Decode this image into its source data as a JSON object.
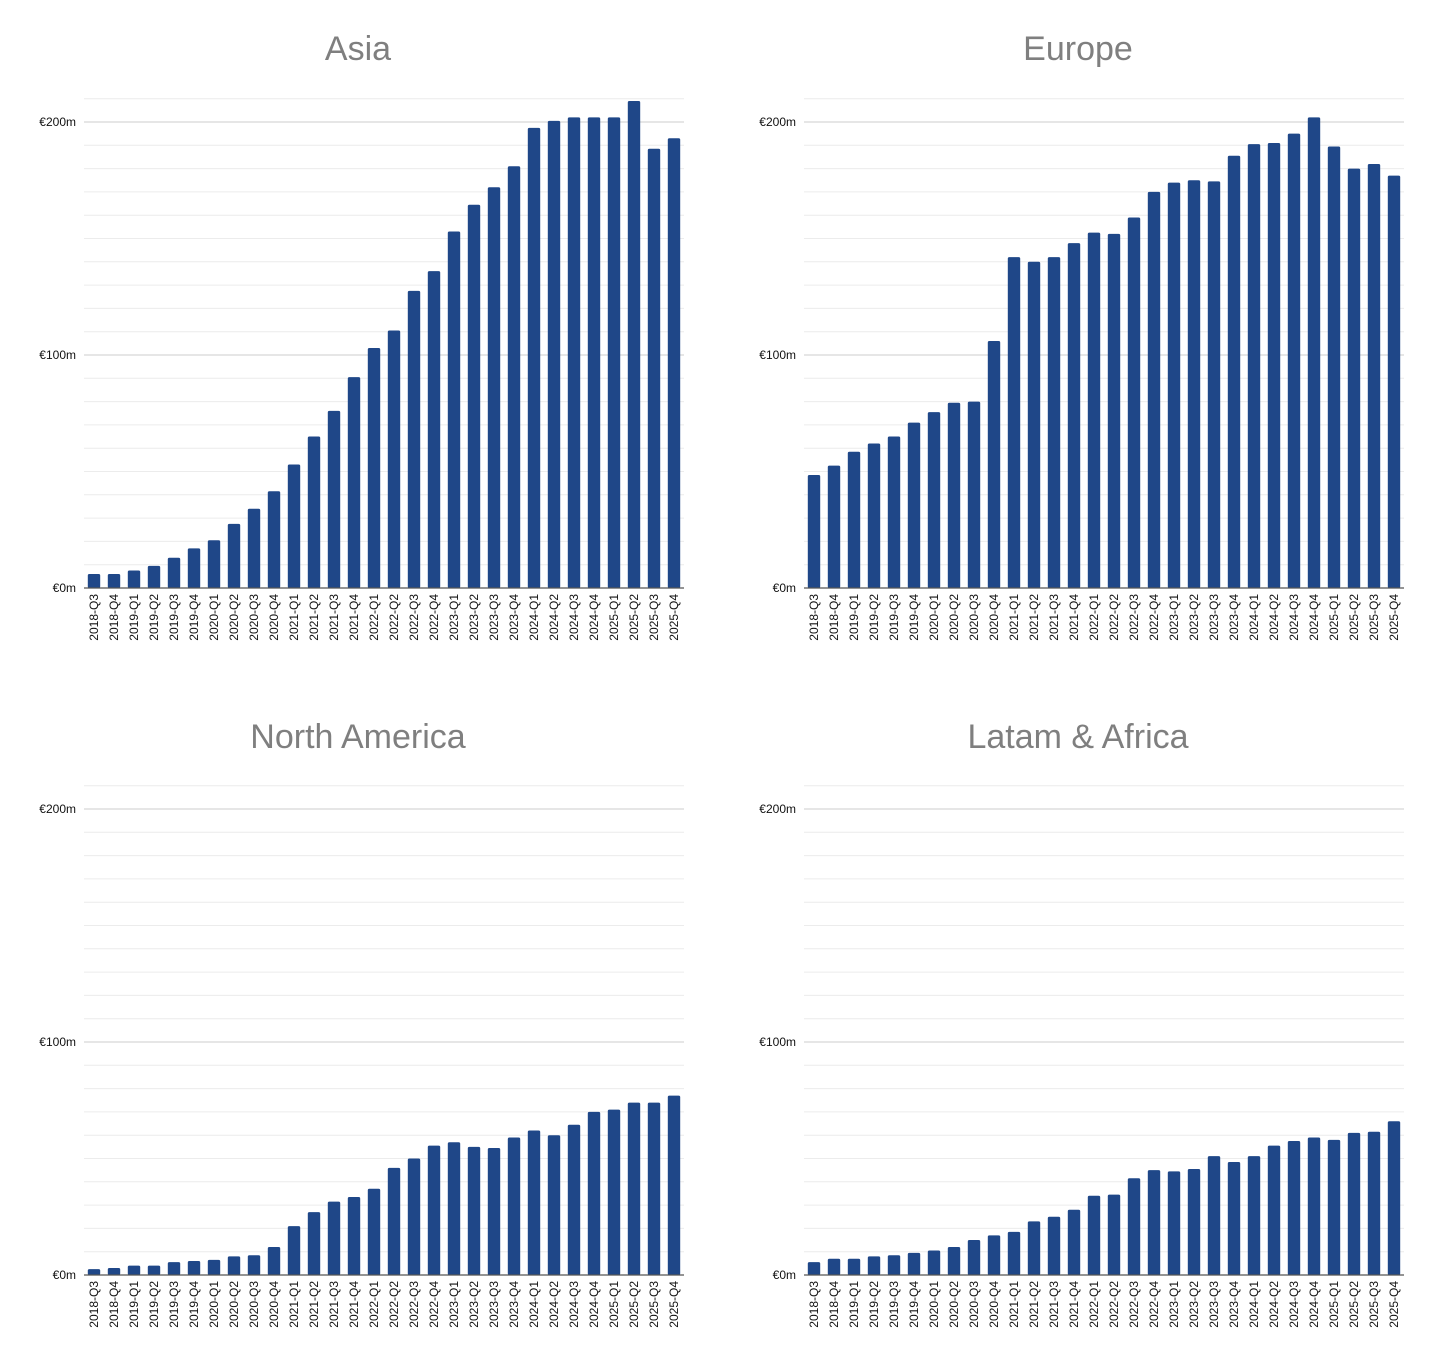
{
  "chart_data": [
    {
      "type": "bar",
      "title": "Asia",
      "categories": [
        "2018-Q3",
        "2018-Q4",
        "2019-Q1",
        "2019-Q2",
        "2019-Q3",
        "2019-Q4",
        "2020-Q1",
        "2020-Q2",
        "2020-Q3",
        "2020-Q4",
        "2021-Q1",
        "2021-Q2",
        "2021-Q3",
        "2021-Q4",
        "2022-Q1",
        "2022-Q2",
        "2022-Q3",
        "2022-Q4",
        "2023-Q1",
        "2023-Q2",
        "2023-Q3",
        "2023-Q4",
        "2024-Q1",
        "2024-Q2",
        "2024-Q3",
        "2024-Q4",
        "2025-Q1",
        "2025-Q2",
        "2025-Q3",
        "2025-Q4"
      ],
      "values": [
        6,
        6,
        7.5,
        9.5,
        13,
        17,
        20.5,
        27.5,
        34,
        41.5,
        53,
        65,
        76,
        90.5,
        103,
        110.5,
        127.5,
        136,
        153,
        164.5,
        172,
        181,
        197.5,
        200.5,
        202,
        202,
        202,
        209,
        188.5,
        193
      ],
      "yticks": [
        "€0m",
        "€100m",
        "€200m"
      ],
      "ylim": [
        0,
        210
      ],
      "grid": true,
      "bar_color": "#1f4788"
    },
    {
      "type": "bar",
      "title": "Europe",
      "categories": [
        "2018-Q3",
        "2018-Q4",
        "2019-Q1",
        "2019-Q2",
        "2019-Q3",
        "2019-Q4",
        "2020-Q1",
        "2020-Q2",
        "2020-Q3",
        "2020-Q4",
        "2021-Q1",
        "2021-Q2",
        "2021-Q3",
        "2021-Q4",
        "2022-Q1",
        "2022-Q2",
        "2022-Q3",
        "2022-Q4",
        "2023-Q1",
        "2023-Q2",
        "2023-Q3",
        "2023-Q4",
        "2024-Q1",
        "2024-Q2",
        "2024-Q3",
        "2024-Q4",
        "2025-Q1",
        "2025-Q2",
        "2025-Q3",
        "2025-Q4"
      ],
      "values": [
        48.5,
        52.5,
        58.5,
        62,
        65,
        71,
        75.5,
        79.5,
        80,
        106,
        142,
        140,
        142,
        148,
        152.5,
        152,
        159,
        170,
        174,
        175,
        174.5,
        185.5,
        190.5,
        191,
        195,
        202,
        189.5,
        180,
        182,
        177
      ],
      "yticks": [
        "€0m",
        "€100m",
        "€200m"
      ],
      "ylim": [
        0,
        210
      ],
      "grid": true,
      "bar_color": "#1f4788"
    },
    {
      "type": "bar",
      "title": "North America",
      "categories": [
        "2018-Q3",
        "2018-Q4",
        "2019-Q1",
        "2019-Q2",
        "2019-Q3",
        "2019-Q4",
        "2020-Q1",
        "2020-Q2",
        "2020-Q3",
        "2020-Q4",
        "2021-Q1",
        "2021-Q2",
        "2021-Q3",
        "2021-Q4",
        "2022-Q1",
        "2022-Q2",
        "2022-Q3",
        "2022-Q4",
        "2023-Q1",
        "2023-Q2",
        "2023-Q3",
        "2023-Q4",
        "2024-Q1",
        "2024-Q2",
        "2024-Q3",
        "2024-Q4",
        "2025-Q1",
        "2025-Q2",
        "2025-Q3",
        "2025-Q4"
      ],
      "values": [
        2.5,
        3,
        4,
        4,
        5.5,
        6,
        6.5,
        8,
        8.5,
        12,
        21,
        27,
        31.5,
        33.5,
        37,
        46,
        50,
        55.5,
        57,
        55,
        54.5,
        59,
        62,
        60,
        64.5,
        70,
        71,
        74,
        74,
        77
      ],
      "yticks": [
        "€0m",
        "€100m",
        "€200m"
      ],
      "ylim": [
        0,
        210
      ],
      "grid": true,
      "bar_color": "#1f4788"
    },
    {
      "type": "bar",
      "title": "Latam & Africa",
      "categories": [
        "2018-Q3",
        "2018-Q4",
        "2019-Q1",
        "2019-Q2",
        "2019-Q3",
        "2019-Q4",
        "2020-Q1",
        "2020-Q2",
        "2020-Q3",
        "2020-Q4",
        "2021-Q1",
        "2021-Q2",
        "2021-Q3",
        "2021-Q4",
        "2022-Q1",
        "2022-Q2",
        "2022-Q3",
        "2022-Q4",
        "2023-Q1",
        "2023-Q2",
        "2023-Q3",
        "2023-Q4",
        "2024-Q1",
        "2024-Q2",
        "2024-Q3",
        "2024-Q4",
        "2025-Q1",
        "2025-Q2",
        "2025-Q3",
        "2025-Q4"
      ],
      "values": [
        5.5,
        7,
        7,
        8,
        8.5,
        9.5,
        10.5,
        12,
        15,
        17,
        18.5,
        23,
        25,
        28,
        34,
        34.5,
        41.5,
        45,
        44.5,
        45.5,
        51,
        48.5,
        51,
        55.5,
        57.5,
        59,
        58,
        61,
        61.5,
        66
      ],
      "yticks": [
        "€0m",
        "€100m",
        "€200m"
      ],
      "ylim": [
        0,
        210
      ],
      "grid": true,
      "bar_color": "#1f4788"
    }
  ]
}
